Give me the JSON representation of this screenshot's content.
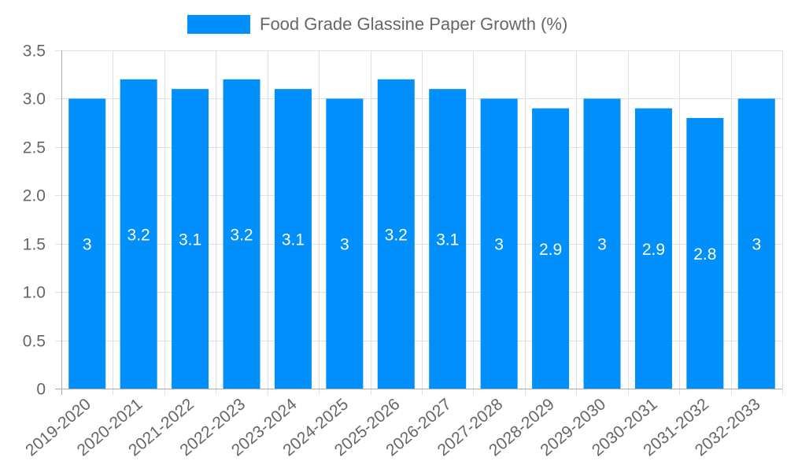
{
  "chart_data": {
    "type": "bar",
    "title": "",
    "legend": {
      "label": "Food Grade Glassine Paper Growth (%)",
      "position": "top"
    },
    "categories": [
      "2019-2020",
      "2020-2021",
      "2021-2022",
      "2022-2023",
      "2023-2024",
      "2024-2025",
      "2025-2026",
      "2026-2027",
      "2027-2028",
      "2028-2029",
      "2029-2030",
      "2030-2031",
      "2031-2032",
      "2032-2033"
    ],
    "series": [
      {
        "name": "Food Grade Glassine Paper Growth (%)",
        "values": [
          3,
          3.2,
          3.1,
          3.2,
          3.1,
          3,
          3.2,
          3.1,
          3,
          2.9,
          3,
          2.9,
          2.8,
          3
        ],
        "color": "#008ffb"
      }
    ],
    "data_labels": [
      "3",
      "3.2",
      "3.1",
      "3.2",
      "3.1",
      "3",
      "3.2",
      "3.1",
      "3",
      "2.9",
      "3",
      "2.9",
      "2.8",
      "3"
    ],
    "xlabel": "",
    "ylabel": "",
    "ylim": [
      0,
      3.5
    ],
    "yticks": [
      "0",
      "0.5",
      "1.0",
      "1.5",
      "2.0",
      "2.5",
      "3.0",
      "3.5"
    ],
    "grid": true
  },
  "colors": {
    "bar": "#008ffb",
    "grid": "#e0e0e0",
    "axis": "#aaaaaa",
    "tick_text": "#666666",
    "label_text": "#ffffff"
  }
}
